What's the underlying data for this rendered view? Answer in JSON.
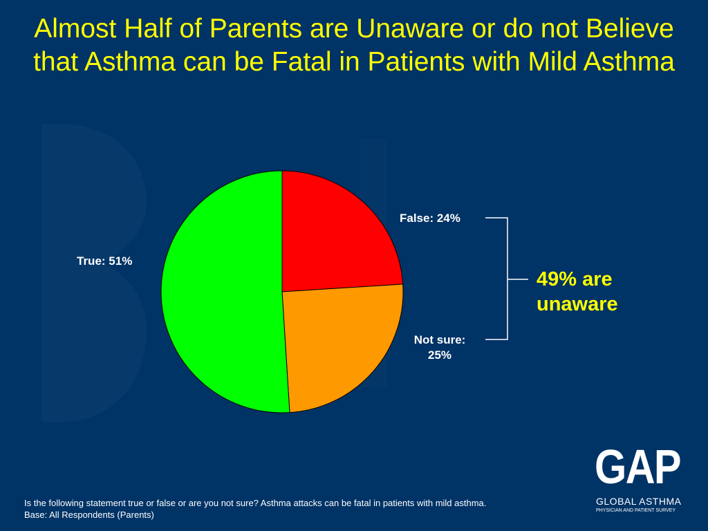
{
  "title": "Almost Half of Parents are Unaware or do not Believe that Asthma can be Fatal in Patients with Mild Asthma",
  "chart_data": {
    "type": "pie",
    "title": "",
    "slices": [
      {
        "label": "False",
        "value": 24,
        "display": "False: 24%",
        "color": "#ff0000"
      },
      {
        "label": "Not sure",
        "value": 25,
        "display_line1": "Not sure:",
        "display_line2": "25%",
        "color": "#ff9900"
      },
      {
        "label": "True",
        "value": 51,
        "display": "True: 51%",
        "color": "#00ff00"
      }
    ],
    "start_angle": "12 o'clock",
    "direction": "clockwise",
    "legend": "none",
    "annotation": {
      "line1": "49% are",
      "line2": "unaware",
      "color": "#ffff00",
      "groups": [
        "False",
        "Not sure"
      ]
    }
  },
  "footnote": {
    "line1": "Is the following statement true or false or are you not sure?   Asthma attacks can be fatal in patients with mild asthma.",
    "line2": "Base: All Respondents (Parents)"
  },
  "logo": {
    "main": "GAP",
    "line1": "GLOBAL ASTHMA",
    "line2": "PHYSICIAN AND PATIENT SURVEY"
  },
  "colors": {
    "background": "#003366",
    "title": "#ffff00",
    "text": "#ffffff"
  }
}
